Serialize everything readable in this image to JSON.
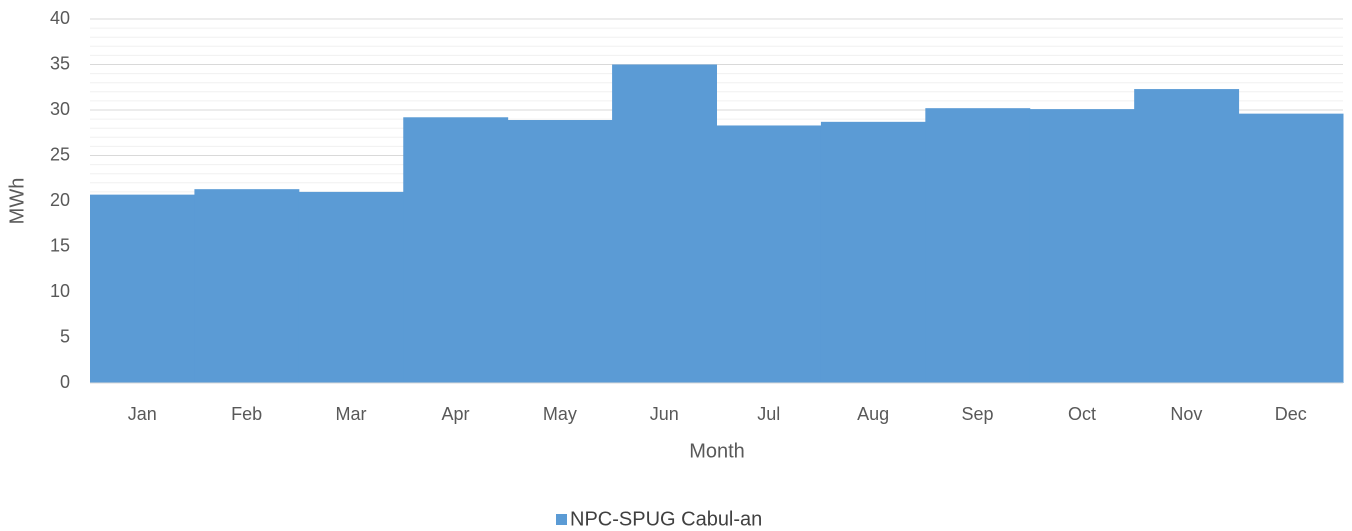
{
  "chart_data": {
    "type": "bar",
    "x_label": "Month",
    "y_label": "MWh",
    "categories": [
      "Jan",
      "Feb",
      "Mar",
      "Apr",
      "May",
      "Jun",
      "Jul",
      "Aug",
      "Sep",
      "Oct",
      "Nov",
      "Dec"
    ],
    "series": [
      {
        "name": "NPC-SPUG Cabul-an",
        "color": "#5b9bd5",
        "values": [
          20.7,
          21.3,
          21.0,
          29.2,
          28.9,
          35.0,
          28.3,
          28.7,
          30.2,
          30.1,
          32.3,
          29.6
        ]
      }
    ],
    "ylim": [
      0,
      40
    ],
    "yticks": [
      0,
      5,
      10,
      15,
      20,
      25,
      30,
      35,
      40
    ],
    "grid": true,
    "minor_grid_step": 1,
    "legend": "bottom"
  }
}
